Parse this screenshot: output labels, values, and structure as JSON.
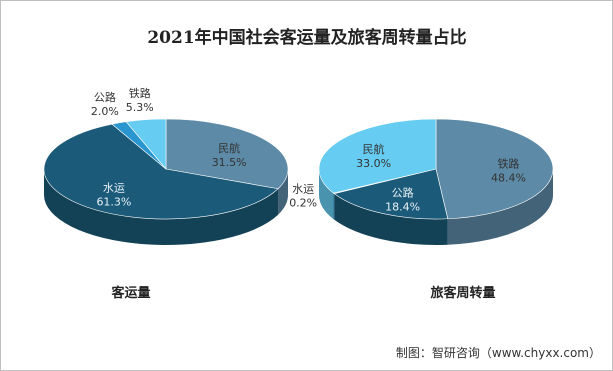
{
  "title": "2021年中国社会客运量及旅客周转量占比",
  "source": "制图：智研咨询（www.chyxx.com）",
  "chart_data": [
    {
      "type": "pie",
      "title": "客运量",
      "categories": [
        "民航",
        "水运",
        "公路",
        "铁路"
      ],
      "values": [
        31.5,
        61.3,
        2.0,
        5.3
      ],
      "value_labels": [
        "31.5%",
        "61.3%",
        "2.0%",
        "5.3%"
      ],
      "colors": [
        "#5d8aa6",
        "#1b5a78",
        "#2a96cf",
        "#66ccf2"
      ]
    },
    {
      "type": "pie",
      "title": "旅客周转量",
      "categories": [
        "铁路",
        "公路",
        "水运",
        "民航"
      ],
      "values": [
        48.4,
        18.4,
        0.2,
        33.0
      ],
      "value_labels": [
        "48.4%",
        "18.4%",
        "0.2%",
        "33.0%"
      ],
      "colors": [
        "#5d8aa6",
        "#1b5a78",
        "#2a96cf",
        "#66ccf2"
      ]
    }
  ]
}
